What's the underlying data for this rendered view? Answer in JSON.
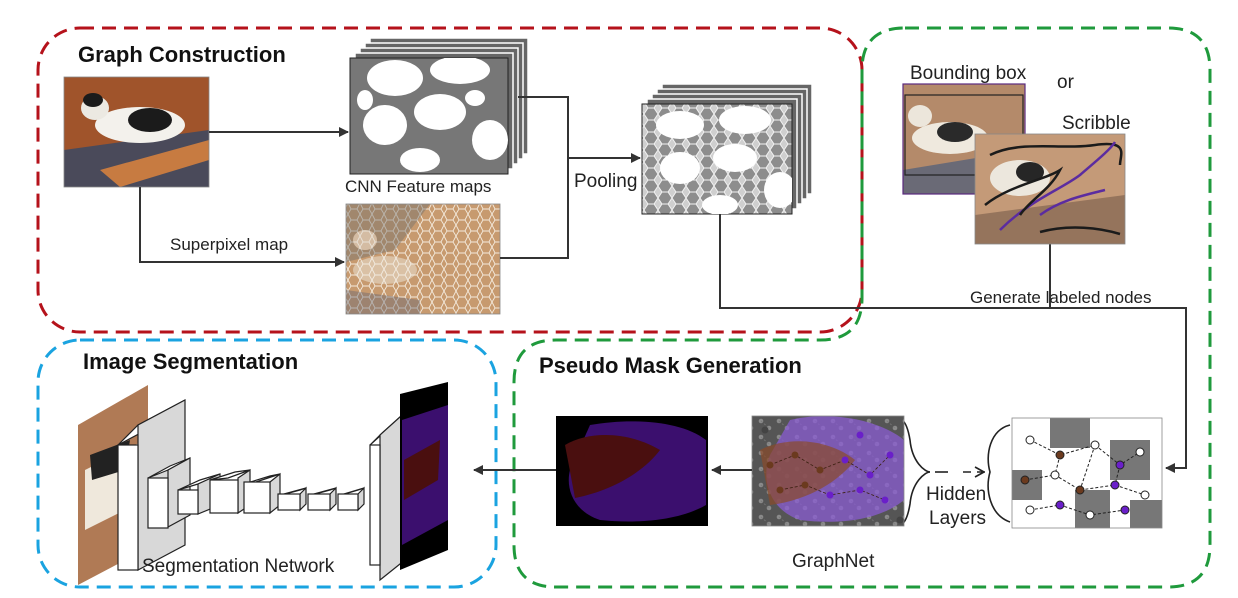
{
  "sections": {
    "graph_construction": "Graph Construction",
    "image_segmentation": "Image Segmentation",
    "pseudo_mask_generation": "Pseudo Mask Generation"
  },
  "labels": {
    "cnn_feature_maps": "CNN Feature maps",
    "superpixel_map": "Superpixel map",
    "pooling": "Pooling",
    "bounding_box": "Bounding box",
    "or": "or",
    "scribble": "Scribble",
    "generate_labeled_nodes": "Generate labeled nodes",
    "hidden": "Hidden",
    "layers": "Layers",
    "graphnet": "GraphNet",
    "segmentation_network": "Segmentation Network"
  },
  "colors": {
    "graph_construction_border": "#b5121b",
    "image_segmentation_border": "#1aa3e0",
    "pseudo_mask_border": "#1f9a3c",
    "mask_background": "#000000",
    "mask_object": "#3b0f6e",
    "mask_cat": "#4a0f0f",
    "feature_gray": "#777777",
    "node_purple": "#6a1fc9",
    "node_brown": "#6b3a1e"
  }
}
